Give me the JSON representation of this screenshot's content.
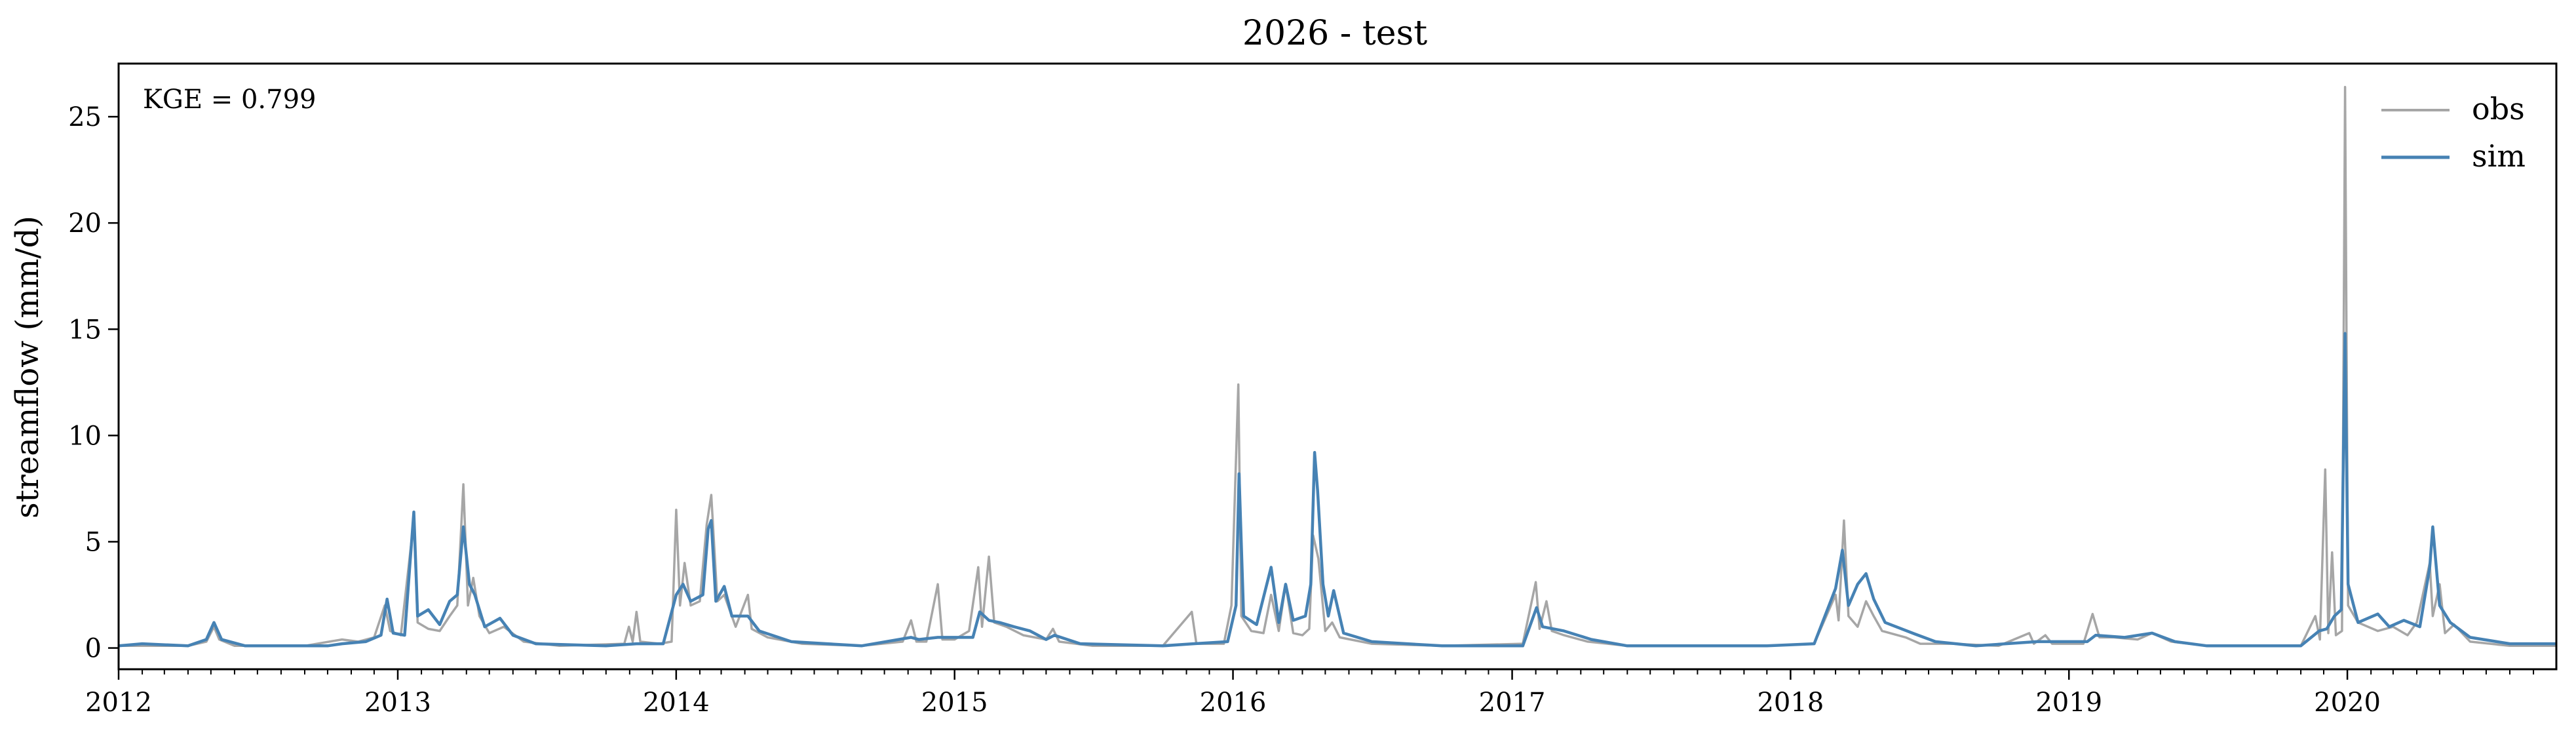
{
  "chart_data": {
    "type": "line",
    "title": "2026 - test",
    "xlabel": "",
    "ylabel": "streamflow (mm/d)",
    "xlim": [
      "2012-01-01",
      "2020-10-01"
    ],
    "ylim": [
      -1,
      27.5
    ],
    "x_ticks": [
      "2012",
      "2013",
      "2014",
      "2015",
      "2016",
      "2017",
      "2018",
      "2019",
      "2020"
    ],
    "y_ticks": [
      0,
      5,
      10,
      15,
      20,
      25
    ],
    "grid": false,
    "legend_position": "top-right",
    "annotation": "KGE = 0.799",
    "series": [
      {
        "name": "obs",
        "color": "#a6a6a6",
        "points": [
          [
            "2012-01-01",
            0.1
          ],
          [
            "2012-02-01",
            0.1
          ],
          [
            "2012-04-01",
            0.1
          ],
          [
            "2012-04-25",
            0.3
          ],
          [
            "2012-05-05",
            1.0
          ],
          [
            "2012-05-12",
            0.4
          ],
          [
            "2012-06-01",
            0.1
          ],
          [
            "2012-09-01",
            0.1
          ],
          [
            "2012-10-20",
            0.4
          ],
          [
            "2012-11-10",
            0.3
          ],
          [
            "2012-12-01",
            0.5
          ],
          [
            "2012-12-15",
            2.0
          ],
          [
            "2012-12-22",
            0.8
          ],
          [
            "2013-01-05",
            0.6
          ],
          [
            "2013-01-22",
            6.0
          ],
          [
            "2013-01-27",
            1.2
          ],
          [
            "2013-02-10",
            0.9
          ],
          [
            "2013-02-25",
            0.8
          ],
          [
            "2013-03-10",
            1.5
          ],
          [
            "2013-03-20",
            2.0
          ],
          [
            "2013-03-28",
            7.7
          ],
          [
            "2013-04-03",
            2.0
          ],
          [
            "2013-04-10",
            3.3
          ],
          [
            "2013-04-18",
            1.5
          ],
          [
            "2013-05-01",
            0.7
          ],
          [
            "2013-05-20",
            1.0
          ],
          [
            "2013-06-15",
            0.3
          ],
          [
            "2013-08-01",
            0.1
          ],
          [
            "2013-10-25",
            0.2
          ],
          [
            "2013-10-31",
            1.0
          ],
          [
            "2013-11-05",
            0.3
          ],
          [
            "2013-11-10",
            1.7
          ],
          [
            "2013-11-15",
            0.3
          ],
          [
            "2013-12-10",
            0.2
          ],
          [
            "2013-12-26",
            0.3
          ],
          [
            "2014-01-01",
            6.5
          ],
          [
            "2014-01-06",
            2.0
          ],
          [
            "2014-01-12",
            4.0
          ],
          [
            "2014-01-20",
            2.0
          ],
          [
            "2014-02-01",
            2.2
          ],
          [
            "2014-02-10",
            5.8
          ],
          [
            "2014-02-16",
            7.2
          ],
          [
            "2014-02-24",
            2.2
          ],
          [
            "2014-03-05",
            2.5
          ],
          [
            "2014-03-20",
            1.0
          ],
          [
            "2014-04-05",
            2.5
          ],
          [
            "2014-04-10",
            0.9
          ],
          [
            "2014-05-01",
            0.5
          ],
          [
            "2014-06-15",
            0.2
          ],
          [
            "2014-09-01",
            0.1
          ],
          [
            "2014-10-25",
            0.3
          ],
          [
            "2014-11-05",
            1.3
          ],
          [
            "2014-11-12",
            0.3
          ],
          [
            "2014-11-25",
            0.3
          ],
          [
            "2014-12-10",
            3.0
          ],
          [
            "2014-12-16",
            0.4
          ],
          [
            "2015-01-01",
            0.4
          ],
          [
            "2015-01-20",
            0.8
          ],
          [
            "2015-02-01",
            3.8
          ],
          [
            "2015-02-06",
            1.0
          ],
          [
            "2015-02-15",
            4.3
          ],
          [
            "2015-02-22",
            1.2
          ],
          [
            "2015-03-10",
            1.0
          ],
          [
            "2015-04-01",
            0.6
          ],
          [
            "2015-05-01",
            0.4
          ],
          [
            "2015-05-10",
            0.9
          ],
          [
            "2015-05-18",
            0.3
          ],
          [
            "2015-07-01",
            0.1
          ],
          [
            "2015-10-01",
            0.1
          ],
          [
            "2015-11-08",
            1.7
          ],
          [
            "2015-11-14",
            0.2
          ],
          [
            "2015-12-20",
            0.2
          ],
          [
            "2015-12-30",
            2.0
          ],
          [
            "2016-01-08",
            12.4
          ],
          [
            "2016-01-12",
            1.5
          ],
          [
            "2016-01-25",
            0.8
          ],
          [
            "2016-02-10",
            0.7
          ],
          [
            "2016-02-20",
            2.5
          ],
          [
            "2016-03-01",
            0.8
          ],
          [
            "2016-03-10",
            3.0
          ],
          [
            "2016-03-20",
            0.7
          ],
          [
            "2016-04-01",
            0.6
          ],
          [
            "2016-04-10",
            0.9
          ],
          [
            "2016-04-15",
            5.3
          ],
          [
            "2016-04-22",
            4.2
          ],
          [
            "2016-05-01",
            0.8
          ],
          [
            "2016-05-10",
            1.2
          ],
          [
            "2016-05-20",
            0.5
          ],
          [
            "2016-07-01",
            0.2
          ],
          [
            "2016-10-01",
            0.1
          ],
          [
            "2017-01-15",
            0.2
          ],
          [
            "2017-02-01",
            3.1
          ],
          [
            "2017-02-06",
            0.9
          ],
          [
            "2017-02-15",
            2.2
          ],
          [
            "2017-02-22",
            0.8
          ],
          [
            "2017-03-10",
            0.6
          ],
          [
            "2017-04-10",
            0.3
          ],
          [
            "2017-06-01",
            0.1
          ],
          [
            "2017-12-01",
            0.1
          ],
          [
            "2018-02-01",
            0.2
          ],
          [
            "2018-03-01",
            2.5
          ],
          [
            "2018-03-05",
            1.3
          ],
          [
            "2018-03-12",
            6.0
          ],
          [
            "2018-03-18",
            1.5
          ],
          [
            "2018-03-30",
            1.0
          ],
          [
            "2018-04-10",
            2.2
          ],
          [
            "2018-04-20",
            1.5
          ],
          [
            "2018-05-01",
            0.8
          ],
          [
            "2018-06-01",
            0.5
          ],
          [
            "2018-06-20",
            0.2
          ],
          [
            "2018-08-01",
            0.2
          ],
          [
            "2018-10-01",
            0.1
          ],
          [
            "2018-11-10",
            0.7
          ],
          [
            "2018-11-16",
            0.2
          ],
          [
            "2018-12-01",
            0.6
          ],
          [
            "2018-12-10",
            0.2
          ],
          [
            "2019-01-20",
            0.2
          ],
          [
            "2019-02-01",
            1.6
          ],
          [
            "2019-02-10",
            0.5
          ],
          [
            "2019-03-01",
            0.5
          ],
          [
            "2019-04-01",
            0.4
          ],
          [
            "2019-04-20",
            0.7
          ],
          [
            "2019-05-15",
            0.3
          ],
          [
            "2019-07-01",
            0.1
          ],
          [
            "2019-11-01",
            0.1
          ],
          [
            "2019-11-20",
            1.5
          ],
          [
            "2019-11-26",
            0.4
          ],
          [
            "2019-12-03",
            8.4
          ],
          [
            "2019-12-07",
            0.7
          ],
          [
            "2019-12-12",
            4.5
          ],
          [
            "2019-12-17",
            0.6
          ],
          [
            "2019-12-25",
            0.8
          ],
          [
            "2019-12-29",
            26.4
          ],
          [
            "2020-01-02",
            2.0
          ],
          [
            "2020-01-15",
            1.2
          ],
          [
            "2020-02-10",
            0.8
          ],
          [
            "2020-03-01",
            1.0
          ],
          [
            "2020-03-20",
            0.6
          ],
          [
            "2020-04-01",
            1.2
          ],
          [
            "2020-04-18",
            4.0
          ],
          [
            "2020-04-22",
            1.5
          ],
          [
            "2020-05-01",
            3.0
          ],
          [
            "2020-05-08",
            0.7
          ],
          [
            "2020-05-20",
            1.1
          ],
          [
            "2020-06-10",
            0.3
          ],
          [
            "2020-08-01",
            0.1
          ],
          [
            "2020-10-01",
            0.1
          ]
        ]
      },
      {
        "name": "sim",
        "color": "#4682b4",
        "points": [
          [
            "2012-01-01",
            0.1
          ],
          [
            "2012-02-01",
            0.2
          ],
          [
            "2012-04-01",
            0.1
          ],
          [
            "2012-04-25",
            0.4
          ],
          [
            "2012-05-05",
            1.2
          ],
          [
            "2012-05-15",
            0.4
          ],
          [
            "2012-06-15",
            0.1
          ],
          [
            "2012-10-01",
            0.1
          ],
          [
            "2012-10-20",
            0.2
          ],
          [
            "2012-11-20",
            0.3
          ],
          [
            "2012-12-10",
            0.6
          ],
          [
            "2012-12-18",
            2.3
          ],
          [
            "2012-12-26",
            0.7
          ],
          [
            "2013-01-10",
            0.6
          ],
          [
            "2013-01-22",
            6.4
          ],
          [
            "2013-01-27",
            1.5
          ],
          [
            "2013-02-10",
            1.8
          ],
          [
            "2013-02-25",
            1.1
          ],
          [
            "2013-03-10",
            2.2
          ],
          [
            "2013-03-20",
            2.5
          ],
          [
            "2013-03-28",
            5.7
          ],
          [
            "2013-04-05",
            3.0
          ],
          [
            "2013-04-12",
            2.5
          ],
          [
            "2013-04-25",
            1.0
          ],
          [
            "2013-05-15",
            1.4
          ],
          [
            "2013-06-01",
            0.6
          ],
          [
            "2013-07-01",
            0.2
          ],
          [
            "2013-10-01",
            0.1
          ],
          [
            "2013-11-10",
            0.2
          ],
          [
            "2013-12-15",
            0.2
          ],
          [
            "2014-01-01",
            2.5
          ],
          [
            "2014-01-10",
            3.0
          ],
          [
            "2014-01-20",
            2.2
          ],
          [
            "2014-02-05",
            2.5
          ],
          [
            "2014-02-12",
            5.6
          ],
          [
            "2014-02-16",
            6.0
          ],
          [
            "2014-02-22",
            2.2
          ],
          [
            "2014-03-05",
            2.9
          ],
          [
            "2014-03-15",
            1.5
          ],
          [
            "2014-04-05",
            1.5
          ],
          [
            "2014-04-20",
            0.8
          ],
          [
            "2014-06-01",
            0.3
          ],
          [
            "2014-09-01",
            0.1
          ],
          [
            "2014-11-05",
            0.5
          ],
          [
            "2014-11-15",
            0.4
          ],
          [
            "2014-12-10",
            0.5
          ],
          [
            "2015-01-10",
            0.5
          ],
          [
            "2015-01-25",
            0.5
          ],
          [
            "2015-02-03",
            1.7
          ],
          [
            "2015-02-15",
            1.3
          ],
          [
            "2015-03-01",
            1.2
          ],
          [
            "2015-03-20",
            1.0
          ],
          [
            "2015-04-10",
            0.8
          ],
          [
            "2015-05-01",
            0.4
          ],
          [
            "2015-05-12",
            0.6
          ],
          [
            "2015-06-15",
            0.2
          ],
          [
            "2015-10-01",
            0.1
          ],
          [
            "2015-11-10",
            0.2
          ],
          [
            "2015-12-25",
            0.3
          ],
          [
            "2016-01-05",
            2.0
          ],
          [
            "2016-01-09",
            8.2
          ],
          [
            "2016-01-15",
            1.5
          ],
          [
            "2016-02-01",
            1.1
          ],
          [
            "2016-02-20",
            3.8
          ],
          [
            "2016-03-01",
            1.2
          ],
          [
            "2016-03-10",
            3.0
          ],
          [
            "2016-03-20",
            1.3
          ],
          [
            "2016-04-05",
            1.5
          ],
          [
            "2016-04-12",
            3.0
          ],
          [
            "2016-04-17",
            9.2
          ],
          [
            "2016-04-21",
            7.4
          ],
          [
            "2016-04-28",
            3.0
          ],
          [
            "2016-05-05",
            1.5
          ],
          [
            "2016-05-12",
            2.7
          ],
          [
            "2016-05-25",
            0.7
          ],
          [
            "2016-07-01",
            0.3
          ],
          [
            "2016-10-01",
            0.1
          ],
          [
            "2017-01-15",
            0.1
          ],
          [
            "2017-02-02",
            1.9
          ],
          [
            "2017-02-10",
            1.0
          ],
          [
            "2017-03-10",
            0.8
          ],
          [
            "2017-04-15",
            0.4
          ],
          [
            "2017-06-01",
            0.1
          ],
          [
            "2017-12-01",
            0.1
          ],
          [
            "2018-02-01",
            0.2
          ],
          [
            "2018-03-01",
            2.8
          ],
          [
            "2018-03-10",
            4.6
          ],
          [
            "2018-03-18",
            2.0
          ],
          [
            "2018-03-30",
            3.0
          ],
          [
            "2018-04-10",
            3.5
          ],
          [
            "2018-04-20",
            2.3
          ],
          [
            "2018-05-05",
            1.2
          ],
          [
            "2018-06-10",
            0.7
          ],
          [
            "2018-07-10",
            0.3
          ],
          [
            "2018-09-01",
            0.1
          ],
          [
            "2018-11-20",
            0.3
          ],
          [
            "2018-12-10",
            0.3
          ],
          [
            "2019-01-25",
            0.3
          ],
          [
            "2019-02-05",
            0.6
          ],
          [
            "2019-03-15",
            0.5
          ],
          [
            "2019-04-20",
            0.7
          ],
          [
            "2019-05-20",
            0.3
          ],
          [
            "2019-07-01",
            0.1
          ],
          [
            "2019-11-01",
            0.1
          ],
          [
            "2019-11-25",
            0.8
          ],
          [
            "2019-12-05",
            0.9
          ],
          [
            "2019-12-15",
            1.5
          ],
          [
            "2019-12-24",
            1.8
          ],
          [
            "2019-12-29",
            14.8
          ],
          [
            "2020-01-02",
            3.0
          ],
          [
            "2020-01-15",
            1.2
          ],
          [
            "2020-02-10",
            1.6
          ],
          [
            "2020-02-25",
            1.0
          ],
          [
            "2020-03-15",
            1.3
          ],
          [
            "2020-04-05",
            1.0
          ],
          [
            "2020-04-18",
            3.8
          ],
          [
            "2020-04-22",
            5.7
          ],
          [
            "2020-05-01",
            2.0
          ],
          [
            "2020-05-15",
            1.2
          ],
          [
            "2020-06-10",
            0.5
          ],
          [
            "2020-08-01",
            0.2
          ],
          [
            "2020-10-01",
            0.2
          ]
        ]
      }
    ]
  }
}
